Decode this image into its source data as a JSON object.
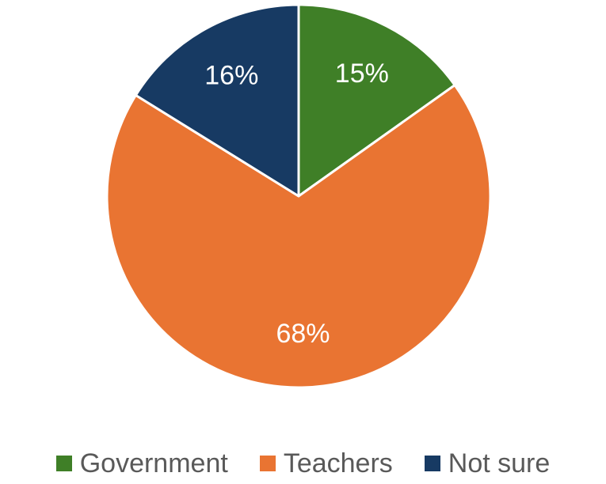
{
  "chart_data": {
    "type": "pie",
    "title": "",
    "slices": [
      {
        "name": "Government",
        "value": 15,
        "label": "15%",
        "color": "#3f7f27"
      },
      {
        "name": "Teachers",
        "value": 68,
        "label": "68%",
        "color": "#e97432"
      },
      {
        "name": "Not sure",
        "value": 16,
        "label": "16%",
        "color": "#173a63"
      }
    ],
    "legend_position": "bottom",
    "start_angle": "12 o'clock, clockwise"
  }
}
